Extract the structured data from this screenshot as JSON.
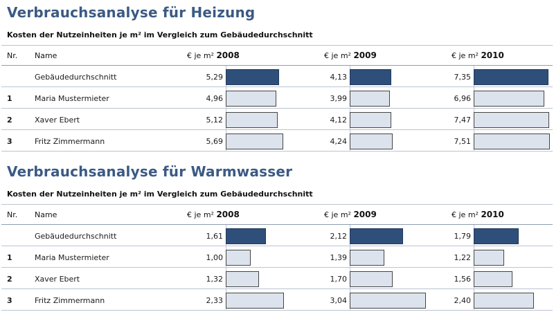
{
  "chart_data": [
    {
      "type": "bar",
      "title": "Verbrauchsanalyse für Heizung",
      "subtitle": "Kosten der Nutzeinheiten je m² im Vergleich zum Gebäudedurchschnitt",
      "columns": {
        "nr": "Nr.",
        "name": "Name",
        "unit": "€ je m²"
      },
      "years": [
        "2008",
        "2009",
        "2010"
      ],
      "rows": [
        {
          "nr": "",
          "name": "Gebäudedurchschnitt",
          "kind": "avg",
          "values": [
            "5,29",
            "4,13",
            "7,35"
          ]
        },
        {
          "nr": "1",
          "name": "Maria Mustermieter",
          "kind": "person",
          "values": [
            "4,96",
            "3,99",
            "6,96"
          ]
        },
        {
          "nr": "2",
          "name": "Xaver Ebert",
          "kind": "person",
          "values": [
            "5,12",
            "4,12",
            "7,47"
          ]
        },
        {
          "nr": "3",
          "name": "Fritz Zimmermann",
          "kind": "person",
          "values": [
            "5,69",
            "4,24",
            "7,51"
          ]
        }
      ]
    },
    {
      "type": "bar",
      "title": "Verbrauchsanalyse für Warmwasser",
      "subtitle": "Kosten der Nutzeinheiten je m² im Vergleich zum Gebäudedurchschnitt",
      "columns": {
        "nr": "Nr.",
        "name": "Name",
        "unit": "€ je m²"
      },
      "years": [
        "2008",
        "2009",
        "2010"
      ],
      "rows": [
        {
          "nr": "",
          "name": "Gebäudedurchschnitt",
          "kind": "avg",
          "values": [
            "1,61",
            "2,12",
            "1,79"
          ]
        },
        {
          "nr": "1",
          "name": "Maria Mustermieter",
          "kind": "person",
          "values": [
            "1,00",
            "1,39",
            "1,22"
          ]
        },
        {
          "nr": "2",
          "name": "Xaver Ebert",
          "kind": "person",
          "values": [
            "1,32",
            "1,70",
            "1,56"
          ]
        },
        {
          "nr": "3",
          "name": "Fritz Zimmermann",
          "kind": "person",
          "values": [
            "2,33",
            "3,04",
            "2,40"
          ]
        }
      ]
    }
  ],
  "colors": {
    "title": "#3b5a84",
    "avg_bar": "#2f4f7b",
    "person_bar": "#dce3ed"
  }
}
